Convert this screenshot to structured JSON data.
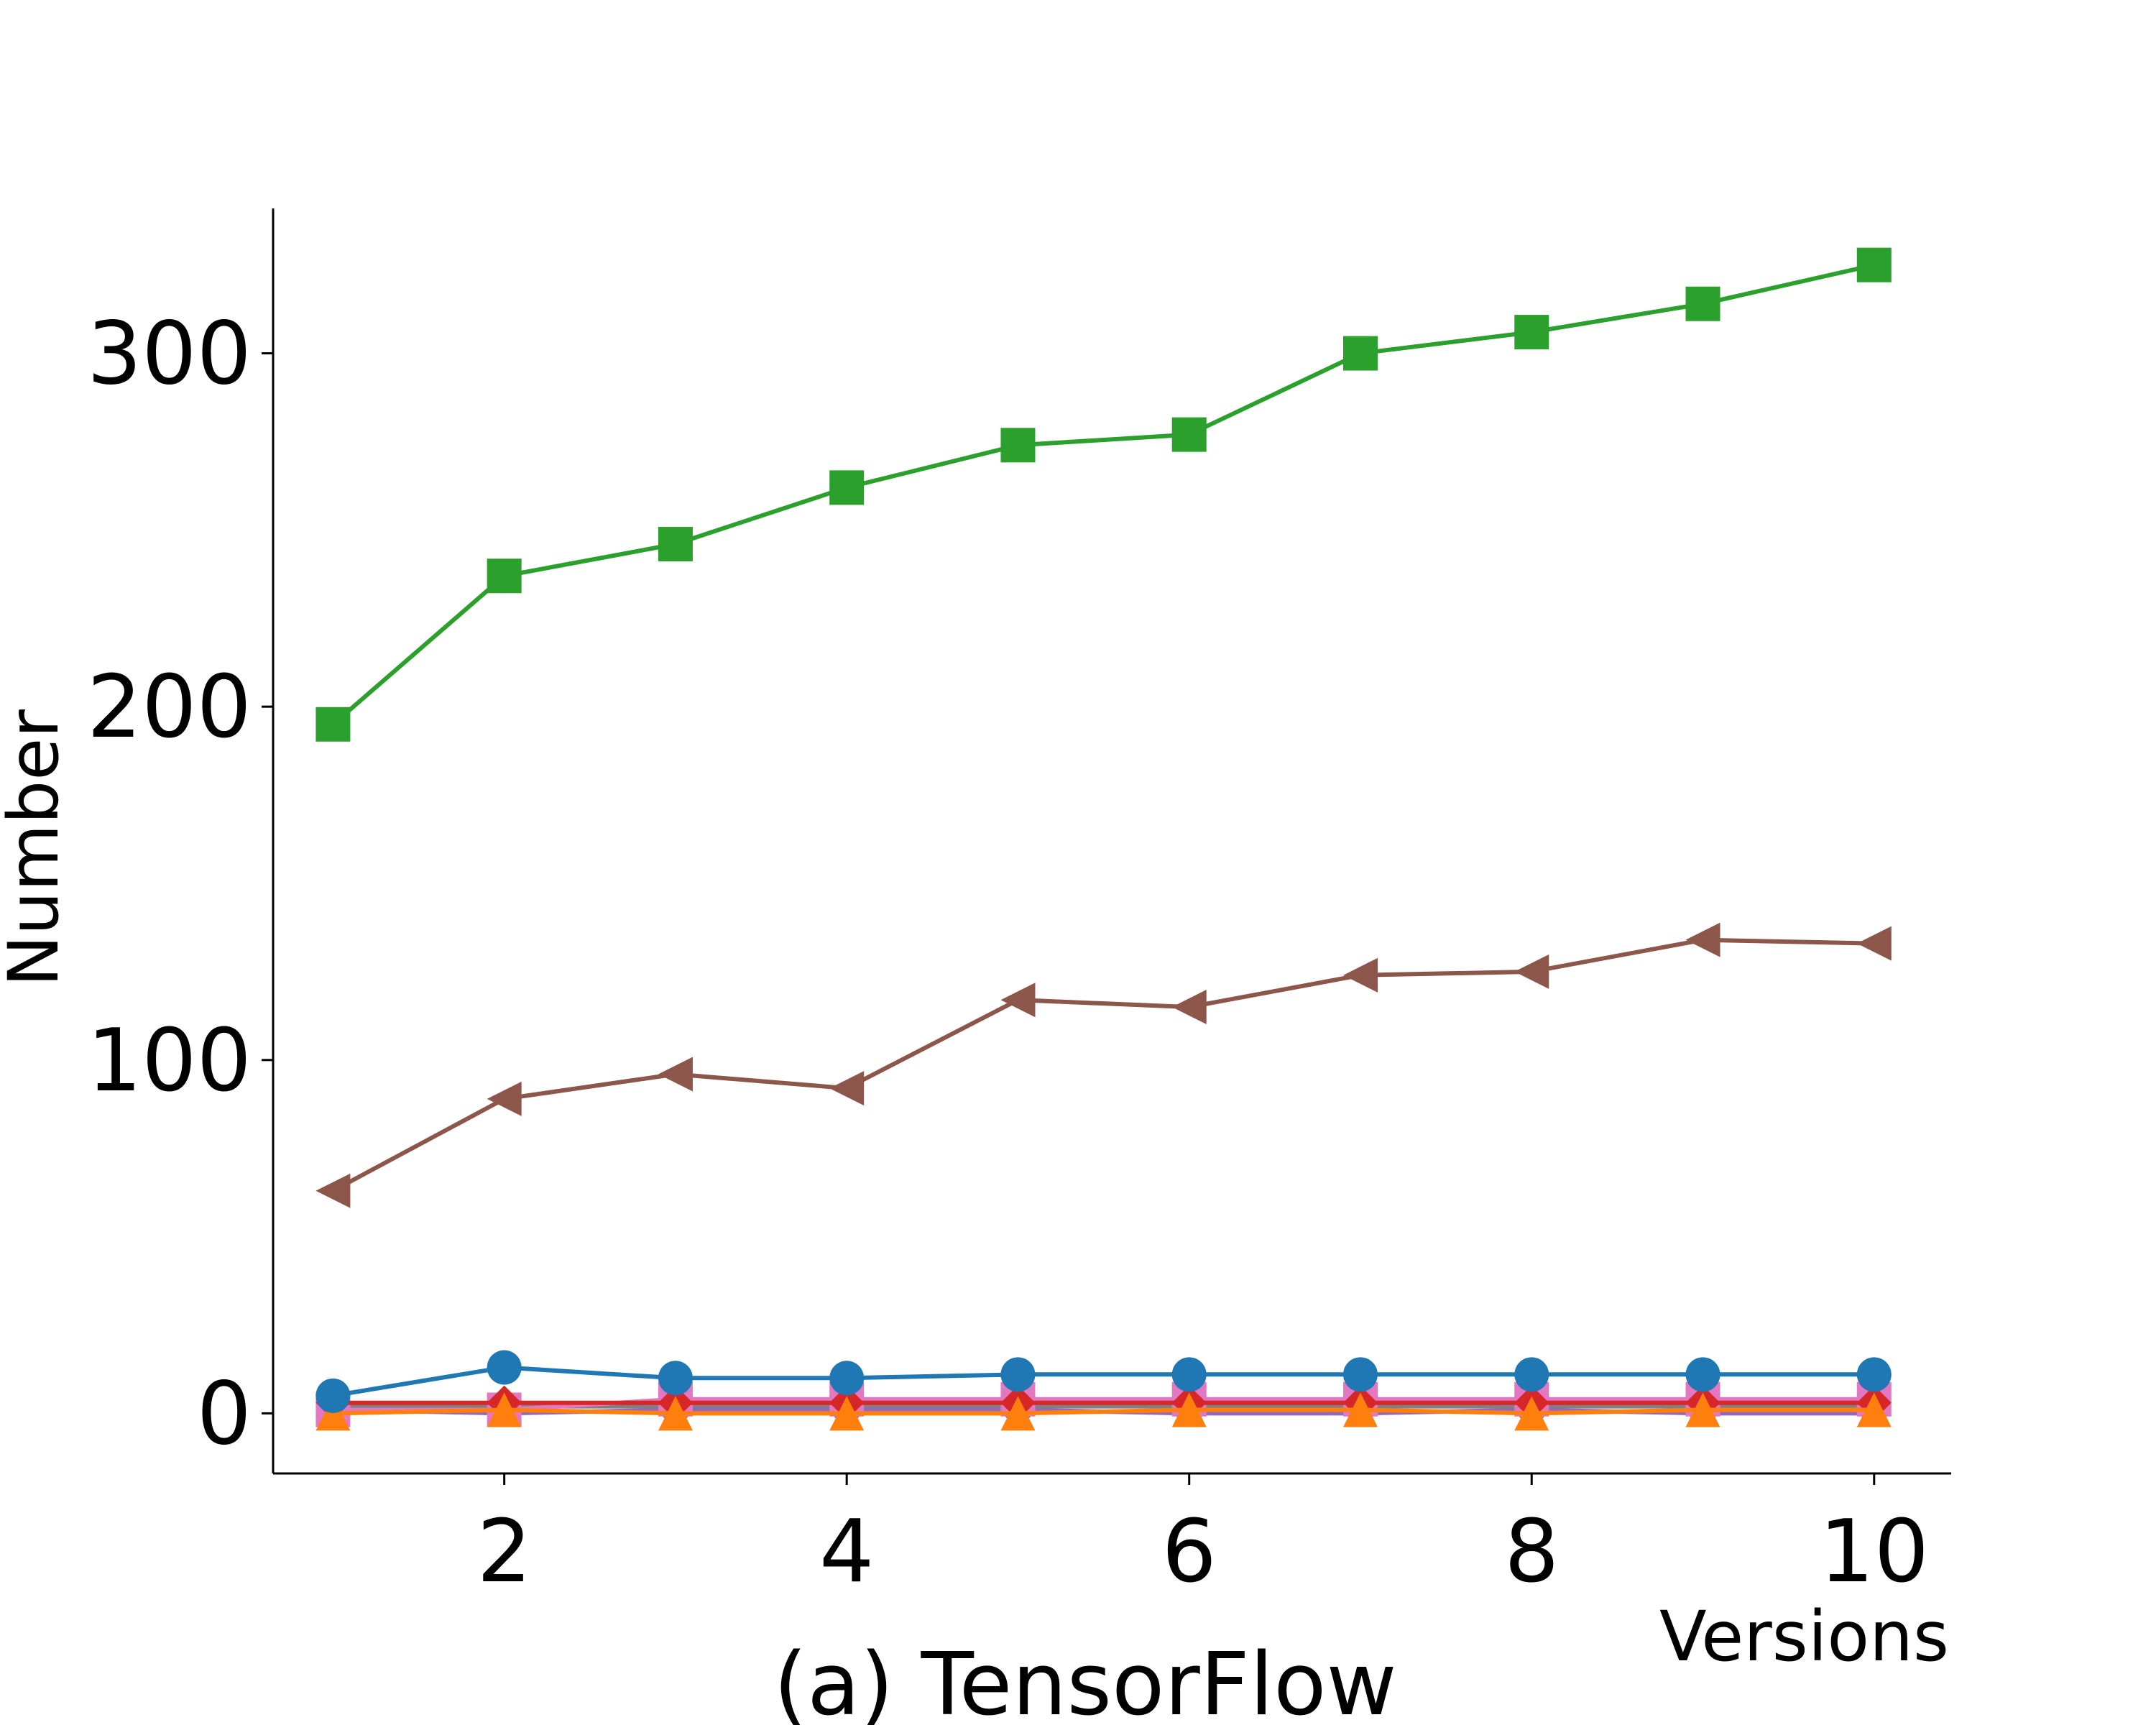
{
  "chart_data": {
    "type": "line",
    "caption": "(a) TensorFlow",
    "xlabel": "Versions",
    "ylabel": "Number",
    "xlim": [
      0.65,
      10.45
    ],
    "ylim": [
      -17,
      341
    ],
    "xticks": [
      2,
      4,
      6,
      8,
      10
    ],
    "yticks": [
      0,
      100,
      200,
      300
    ],
    "grid": false,
    "legend": "none",
    "x": [
      1,
      2,
      3,
      4,
      5,
      6,
      7,
      8,
      9,
      10
    ],
    "series": [
      {
        "color": "#2ca02c",
        "marker": "square",
        "values": [
          195,
          237,
          246,
          262,
          274,
          277,
          300,
          306,
          314,
          325
        ]
      },
      {
        "color": "#8c564b",
        "marker": "triangle-left",
        "values": [
          63,
          89,
          96,
          92,
          117,
          115,
          124,
          125,
          134,
          133
        ]
      },
      {
        "color": "#1f77b4",
        "marker": "circle",
        "values": [
          5,
          13,
          10,
          10,
          11,
          11,
          11,
          11,
          11,
          11
        ]
      },
      {
        "color": "#ff7f0e",
        "marker": "triangle-up",
        "values": [
          0,
          1,
          0,
          0,
          0,
          1,
          1,
          0,
          1,
          1
        ]
      },
      {
        "color": "#d62728",
        "marker": "diamond",
        "values": [
          3,
          3,
          3,
          3,
          3,
          3,
          3,
          3,
          3,
          3
        ]
      },
      {
        "color": "#e377c2",
        "marker": "square",
        "values": [
          1,
          1,
          4,
          4,
          4,
          4,
          4,
          4,
          4,
          4
        ]
      },
      {
        "color": "#9467bd",
        "marker": "star",
        "values": [
          1,
          0,
          1,
          1,
          1,
          0,
          0,
          1,
          0,
          0
        ]
      },
      {
        "color": "#7f7f7f",
        "marker": "x",
        "values": [
          2,
          2,
          2,
          2,
          2,
          2,
          2,
          2,
          2,
          2
        ]
      }
    ]
  }
}
